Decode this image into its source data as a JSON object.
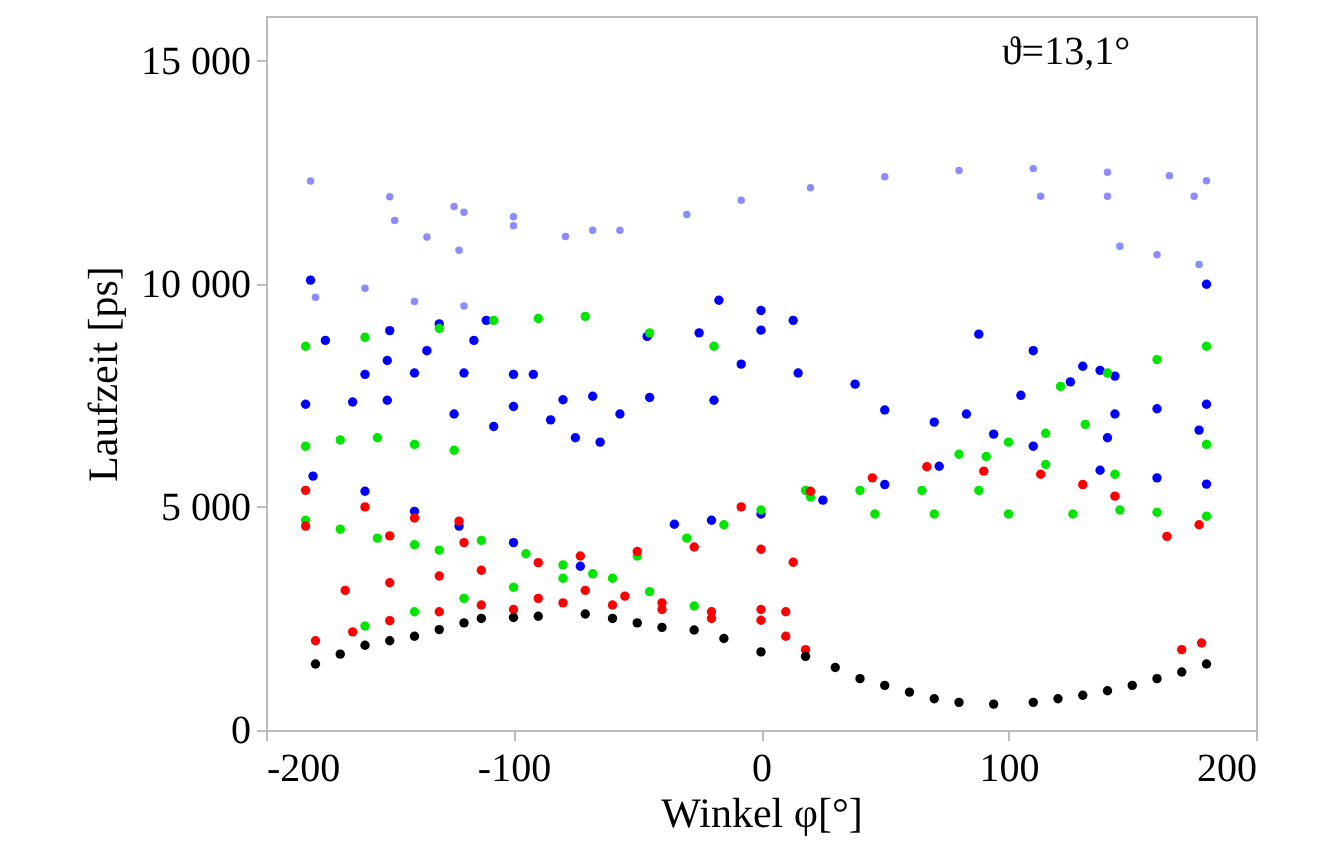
{
  "chart_data": {
    "type": "scatter",
    "xlabel": "Winkel φ[°]",
    "ylabel": "Laufzeit [ps]",
    "annotations": [
      "ϑ=13,1°"
    ],
    "xlim": [
      -200,
      200
    ],
    "xticks": [
      -200,
      -100,
      0,
      100,
      200
    ],
    "ylim": [
      0,
      16000
    ],
    "yticks": [
      0,
      {
        "value": 5000,
        "label": "5 000"
      },
      {
        "value": 10000,
        "label": "10 000"
      },
      {
        "value": 15000,
        "label": "15 000"
      }
    ],
    "grid": false,
    "marker": "circle",
    "series": [
      {
        "color": "#8c8cff",
        "x": [
          -182,
          -150,
          -120,
          -100,
          -79,
          -57,
          -30,
          -8,
          20,
          50,
          80,
          110,
          140,
          165,
          180,
          -148,
          -135,
          -122,
          -124,
          -100,
          -68,
          113,
          140,
          175,
          145,
          160,
          177,
          -180,
          -160,
          -140,
          -120
        ],
        "values": [
          12300,
          11950,
          11600,
          11300,
          11060,
          11200,
          11550,
          11870,
          12150,
          12400,
          12540,
          12580,
          12500,
          12420,
          12310,
          11420,
          11050,
          10750,
          11730,
          11500,
          11200,
          11960,
          11960,
          11960,
          10840,
          10650,
          10430,
          9700,
          9900,
          9600,
          9500
        ]
      },
      {
        "color": "#0000ff",
        "x": [
          -176,
          -150,
          -130,
          -111,
          -151,
          -135,
          -116,
          -160,
          -140,
          -120,
          -100,
          -92,
          -184,
          -165,
          -151,
          -124,
          -100,
          -80,
          -68,
          -45,
          -19,
          -108,
          -85,
          -57,
          -75,
          -65,
          -17,
          0,
          13,
          88,
          110,
          130,
          143,
          83,
          105,
          125,
          137,
          -46,
          -25,
          0,
          -8,
          15,
          38,
          50,
          70,
          94,
          143,
          160,
          180,
          110,
          140,
          177,
          -181,
          -160,
          -140,
          -122,
          -100,
          -73,
          -35,
          -20,
          0,
          25,
          50,
          72,
          137,
          160,
          180,
          -182,
          180
        ],
        "values": [
          8730,
          8950,
          9100,
          9180,
          8280,
          8500,
          8730,
          7970,
          8000,
          8000,
          7970,
          7970,
          7300,
          7350,
          7390,
          7080,
          7250,
          7400,
          7480,
          7450,
          7390,
          6800,
          6950,
          7080,
          6550,
          6450,
          9630,
          9400,
          9180,
          8870,
          8500,
          8150,
          7930,
          7080,
          7500,
          7800,
          8060,
          8820,
          8900,
          8960,
          8200,
          8000,
          7750,
          7170,
          6900,
          6630,
          7080,
          7200,
          7300,
          6360,
          6550,
          6720,
          5690,
          5350,
          4900,
          4570,
          4200,
          3670,
          4610,
          4700,
          4840,
          5150,
          5500,
          5910,
          5820,
          5650,
          5510,
          10080,
          9990
        ]
      },
      {
        "color": "#00e600",
        "x": [
          -184,
          -170,
          -155,
          -140,
          -130,
          -113,
          -95,
          -80,
          -60,
          -45,
          -27,
          -160,
          -140,
          -120,
          -100,
          -80,
          -68,
          -50,
          -30,
          -15,
          0,
          20,
          -184,
          -170,
          -155,
          -140,
          -124,
          -184,
          -160,
          -130,
          -108,
          -90,
          -71,
          -45,
          -19,
          121,
          140,
          160,
          180,
          18,
          40,
          65,
          88,
          46,
          70,
          100,
          126,
          145,
          160,
          180,
          91,
          115,
          143,
          80,
          100,
          115,
          131,
          180
        ],
        "values": [
          4700,
          4500,
          4300,
          4150,
          4030,
          4250,
          3950,
          3700,
          3400,
          3100,
          2780,
          2330,
          2650,
          2950,
          3200,
          3400,
          3500,
          3900,
          4300,
          4600,
          4930,
          5220,
          6360,
          6500,
          6550,
          6400,
          6270,
          8600,
          8800,
          9000,
          9180,
          9220,
          9270,
          8900,
          8600,
          7700,
          8000,
          8300,
          8600,
          5370,
          5370,
          5370,
          5370,
          4840,
          4840,
          4840,
          4840,
          4930,
          4880,
          4790,
          6130,
          5950,
          5730,
          6180,
          6450,
          6650,
          6850,
          6400
        ]
      },
      {
        "color": "#ff0000",
        "x": [
          -180,
          -165,
          -150,
          -130,
          -113,
          -90,
          -71,
          -55,
          -40,
          -20,
          0,
          10,
          18,
          -168,
          -150,
          -130,
          -113,
          -90,
          -73,
          -50,
          -27,
          0,
          13,
          -100,
          -80,
          -60,
          -40,
          -20,
          0,
          10,
          -184,
          -160,
          -140,
          -122,
          -184,
          -150,
          -120,
          -8,
          20,
          45,
          67,
          90,
          113,
          130,
          143,
          164,
          177,
          170,
          178
        ],
        "values": [
          2000,
          2200,
          2450,
          2650,
          2800,
          2950,
          3130,
          3000,
          2850,
          2650,
          2460,
          2100,
          1800,
          3130,
          3300,
          3450,
          3580,
          3750,
          3900,
          4000,
          4100,
          4050,
          3760,
          2700,
          2850,
          2800,
          2700,
          2500,
          2700,
          2650,
          5370,
          5000,
          4750,
          4680,
          4570,
          4350,
          4200,
          5000,
          5350,
          5650,
          5900,
          5800,
          5730,
          5500,
          5240,
          4340,
          4600,
          1800,
          1950
        ]
      },
      {
        "color": "#000000",
        "x": [
          -180,
          -170,
          -160,
          -150,
          -140,
          -130,
          -120,
          -113,
          -100,
          -90,
          -71,
          -60,
          -50,
          -40,
          -27,
          -15,
          0,
          18,
          30,
          40,
          50,
          60,
          70,
          80,
          94,
          110,
          120,
          130,
          140,
          150,
          160,
          170,
          180
        ],
        "values": [
          1480,
          1700,
          1900,
          2000,
          2100,
          2250,
          2400,
          2500,
          2520,
          2550,
          2600,
          2500,
          2400,
          2300,
          2240,
          2050,
          1750,
          1650,
          1400,
          1150,
          1000,
          850,
          700,
          620,
          580,
          620,
          700,
          780,
          880,
          1000,
          1150,
          1300,
          1480
        ]
      }
    ]
  }
}
